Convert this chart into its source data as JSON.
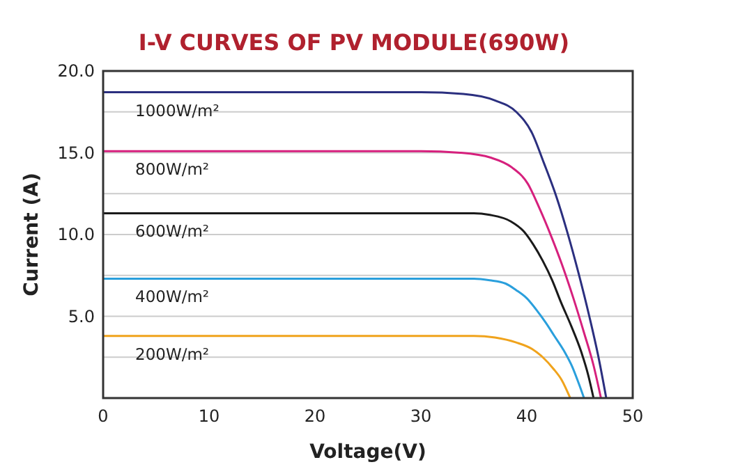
{
  "chart_data": {
    "type": "line",
    "title": "I-V CURVES OF PV MODULE(690W)",
    "xlabel": "Voltage(V)",
    "ylabel": "Current (A)",
    "xlim": [
      0,
      50
    ],
    "xticks": [
      0,
      10,
      20,
      30,
      40,
      50
    ],
    "ylim": [
      0,
      20
    ],
    "yticks": [
      {
        "value": 0,
        "label": null
      },
      {
        "value": 2.5,
        "label": null
      },
      {
        "value": 5,
        "label": "5.0"
      },
      {
        "value": 7.5,
        "label": null
      },
      {
        "value": 10,
        "label": "10.0"
      },
      {
        "value": 12.5,
        "label": null
      },
      {
        "value": 15,
        "label": "15.0"
      },
      {
        "value": 17.5,
        "label": null
      },
      {
        "value": 20,
        "label": "20.0"
      }
    ],
    "grid": "y",
    "marker": "none",
    "line_style": "solid",
    "series": [
      {
        "name": "1000W/m²",
        "color": "#2b2f7f",
        "x": [
          0,
          30,
          34,
          37,
          39,
          40.5,
          41.6,
          42.8,
          43.8,
          44.9,
          45.9,
          46.8,
          47.5
        ],
        "values": [
          18.7,
          18.7,
          18.6,
          18.2,
          17.5,
          16.2,
          14.4,
          12.3,
          10.2,
          7.6,
          5.0,
          2.4,
          0
        ]
      },
      {
        "name": "800W/m²",
        "color": "#d6207d",
        "x": [
          0,
          30,
          33.7,
          36.6,
          38.6,
          40.1,
          41.2,
          42.3,
          43.3,
          44.4,
          45.4,
          46.3,
          47.0
        ],
        "values": [
          15.1,
          15.1,
          15.0,
          14.7,
          14.1,
          13.1,
          11.6,
          9.9,
          8.2,
          6.1,
          4.0,
          2.0,
          0
        ]
      },
      {
        "name": "600W/m²",
        "color": "#1a1a1a",
        "x": [
          0,
          35,
          36.5,
          38.5,
          39.7,
          40.6,
          41.5,
          42.4,
          43.2,
          44.2,
          45.1,
          45.8,
          46.3
        ],
        "values": [
          11.3,
          11.3,
          11.2,
          10.8,
          10.2,
          9.4,
          8.4,
          7.2,
          5.9,
          4.4,
          2.9,
          1.4,
          0
        ]
      },
      {
        "name": "400W/m²",
        "color": "#2a9fdc",
        "x": [
          0,
          35,
          36.5,
          38,
          39,
          40,
          40.9,
          41.8,
          42.6,
          43.5,
          44.3,
          44.9,
          45.4
        ],
        "values": [
          7.3,
          7.3,
          7.2,
          7.0,
          6.6,
          6.1,
          5.4,
          4.6,
          3.8,
          2.9,
          1.9,
          0.9,
          0
        ]
      },
      {
        "name": "200W/m²",
        "color": "#f0a31c",
        "x": [
          0,
          35,
          37,
          39,
          40.5,
          41.5,
          42.5,
          43.3,
          44.1
        ],
        "values": [
          3.8,
          3.8,
          3.7,
          3.4,
          3.0,
          2.5,
          1.8,
          1.1,
          0
        ]
      }
    ]
  }
}
